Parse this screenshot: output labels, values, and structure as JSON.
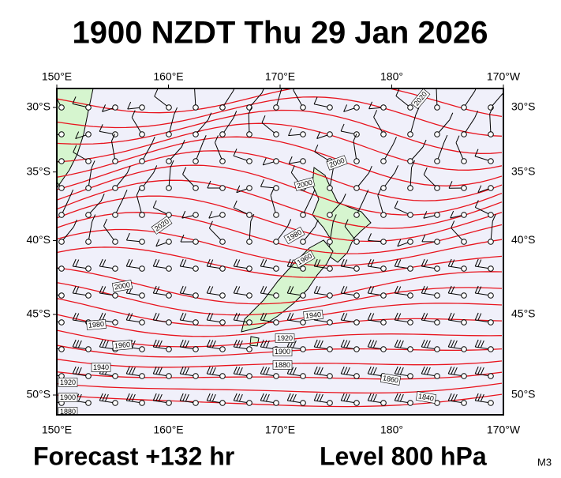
{
  "header": {
    "title": "1900 NZDT Thu 29 Jan 2026"
  },
  "footer": {
    "forecast": "Forecast +132 hr",
    "level": "Level 800 hPa",
    "model": "M3"
  },
  "map": {
    "lon_ticks": [
      {
        "value": 150,
        "label": "150°E"
      },
      {
        "value": 160,
        "label": "160°E"
      },
      {
        "value": 170,
        "label": "170°E"
      },
      {
        "value": 180,
        "label": "180°"
      },
      {
        "value": 190,
        "label": "170°W"
      }
    ],
    "lat_ticks": [
      {
        "value": 30,
        "label": "30°S"
      },
      {
        "value": 35,
        "label": "35°S"
      },
      {
        "value": 40,
        "label": "40°S"
      },
      {
        "value": 45,
        "label": "45°S"
      },
      {
        "value": 50,
        "label": "50°S"
      }
    ],
    "contour_labels": [
      "2020",
      "2000",
      "2000",
      "2020",
      "1980",
      "1960",
      "2000",
      "1980",
      "1960",
      "1940",
      "1940",
      "1920",
      "1900",
      "1880",
      "1920",
      "1900",
      "1880",
      "1860",
      "1840"
    ]
  }
}
